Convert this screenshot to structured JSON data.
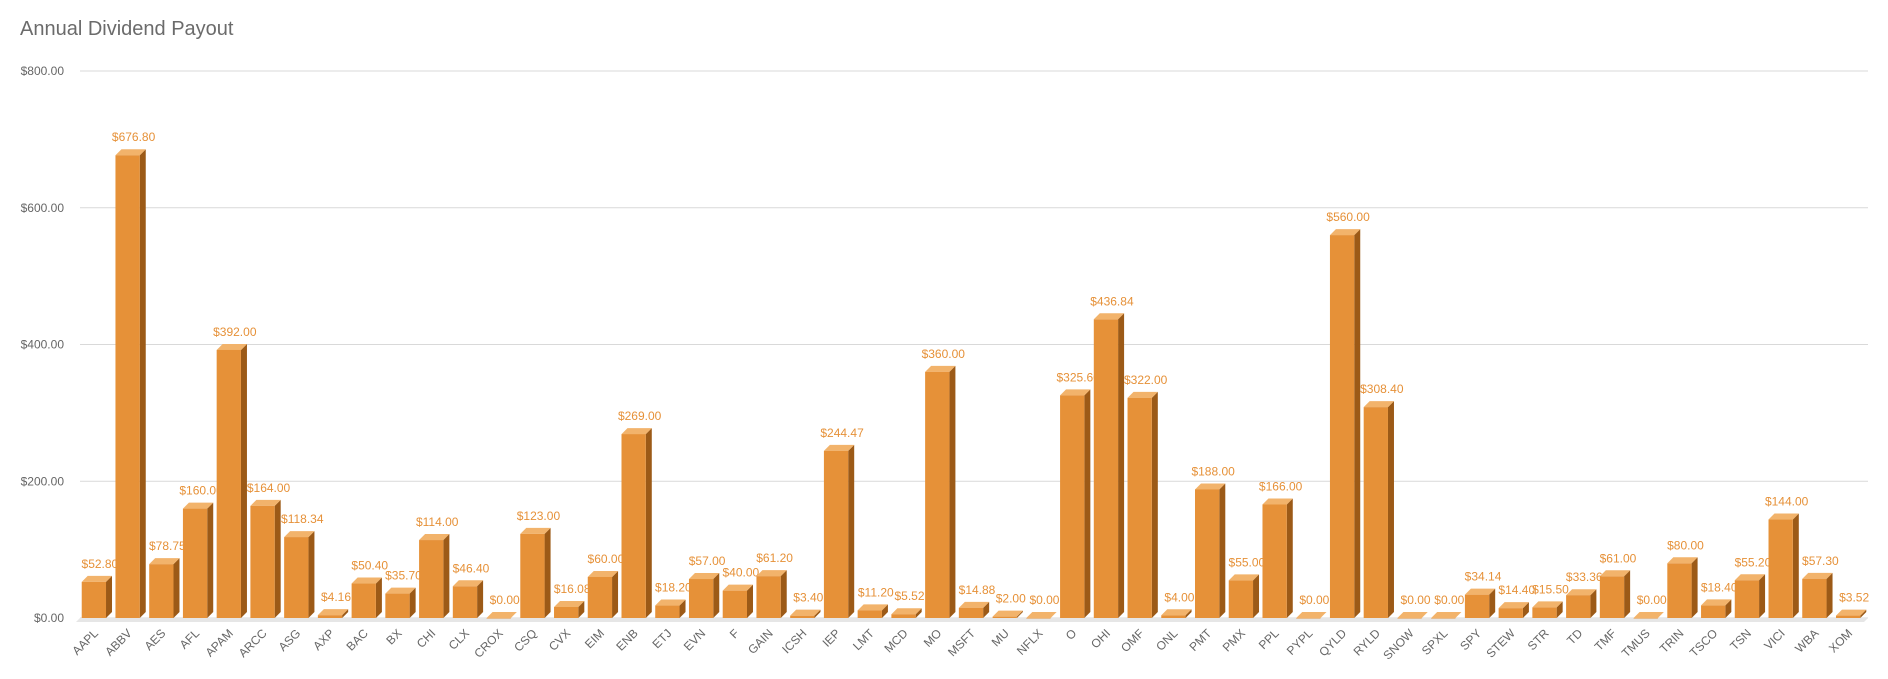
{
  "chart_data": {
    "type": "bar",
    "title": "Annual Dividend Payout",
    "xlabel": "",
    "ylabel": "",
    "ylim": [
      0,
      800
    ],
    "yticks": [
      "$0.00",
      "$200.00",
      "$400.00",
      "$600.00",
      "$800.00"
    ],
    "ytick_values": [
      0,
      200,
      400,
      600,
      800
    ],
    "grid": true,
    "legend": "none",
    "bar_style": "3d",
    "colors": {
      "bar_front": "#E69138",
      "bar_top": "#F2B36B",
      "bar_side": "#9C5A17",
      "label": "#E69138",
      "grid": "#d9d9d9"
    },
    "categories": [
      "AAPL",
      "ABBV",
      "AES",
      "AFL",
      "APAM",
      "ARCC",
      "ASG",
      "AXP",
      "BAC",
      "BX",
      "CHI",
      "CLX",
      "CROX",
      "CSQ",
      "CVX",
      "EIM",
      "ENB",
      "ETJ",
      "EVN",
      "F",
      "GAIN",
      "ICSH",
      "IEP",
      "LMT",
      "MCD",
      "MO",
      "MSFT",
      "MU",
      "NFLX",
      "O",
      "OHI",
      "OMF",
      "ONL",
      "PMT",
      "PMX",
      "PPL",
      "PYPL",
      "QYLD",
      "RYLD",
      "SNOW",
      "SPXL",
      "SPY",
      "STEW",
      "STR",
      "TD",
      "TMF",
      "TMUS",
      "TRIN",
      "TSCO",
      "TSN",
      "VICI",
      "WBA",
      "XOM"
    ],
    "values": [
      52.8,
      676.8,
      78.75,
      160.0,
      392.0,
      164.0,
      118.34,
      4.16,
      50.4,
      35.7,
      114.0,
      46.4,
      0.0,
      123.0,
      16.08,
      60.0,
      269.0,
      18.2,
      57.0,
      40.0,
      61.2,
      3.4,
      244.47,
      11.2,
      5.52,
      360.0,
      14.88,
      2.0,
      0.0,
      325.6,
      436.84,
      322.0,
      4.0,
      188.0,
      55.0,
      166.0,
      0.0,
      560.0,
      308.4,
      0.0,
      0.0,
      34.14,
      14.4,
      15.5,
      33.36,
      61.0,
      0.0,
      80.0,
      18.4,
      55.2,
      144.0,
      57.3,
      3.52
    ],
    "data_labels": [
      "$52.80",
      "$676.80",
      "$78.75",
      "$160.00",
      "$392.00",
      "$164.00",
      "$118.34",
      "$4.16",
      "$50.40",
      "$35.70",
      "$114.00",
      "$46.40",
      "$0.00",
      "$123.00",
      "$16.08",
      "$60.00",
      "$269.00",
      "$18.20",
      "$57.00",
      "$40.00",
      "$61.20",
      "$3.40",
      "$244.47",
      "$11.20",
      "$5.52",
      "$360.00",
      "$14.88",
      "$2.00",
      "$0.00",
      "$325.60",
      "$436.84",
      "$322.00",
      "$4.00",
      "$188.00",
      "$55.00",
      "$166.00",
      "$0.00",
      "$560.00",
      "$308.40",
      "$0.00",
      "$0.00",
      "$34.14",
      "$14.40",
      "$15.50",
      "$33.36",
      "$61.00",
      "$0.00",
      "$80.00",
      "$18.40",
      "$55.20",
      "$144.00",
      "$57.30",
      "$3.52"
    ]
  }
}
